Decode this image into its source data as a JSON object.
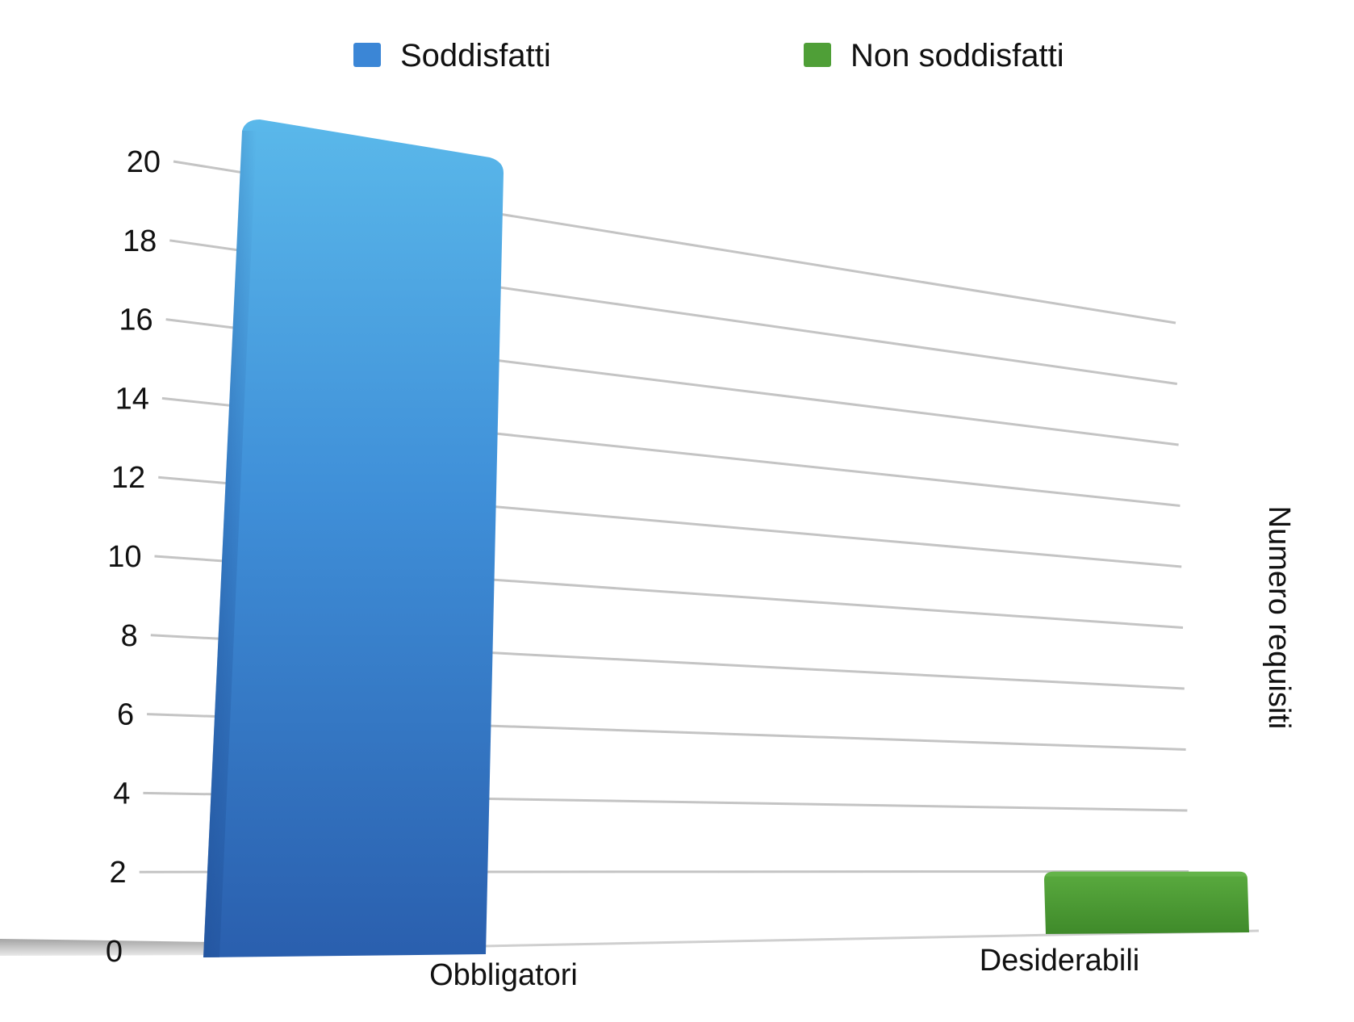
{
  "chart_data": {
    "type": "bar",
    "title": "",
    "xlabel": "",
    "ylabel": "Numero requisiti",
    "ylim": [
      0,
      20
    ],
    "y_ticks": [
      0,
      2,
      4,
      6,
      8,
      10,
      12,
      14,
      16,
      18,
      20
    ],
    "grid": true,
    "legend_position": "top",
    "categories": [
      "Obbligatori",
      "Desiderabili"
    ],
    "series": [
      {
        "name": "Soddisfatti",
        "color": "#3b86d6",
        "values": [
          21,
          0
        ]
      },
      {
        "name": "Non soddisfatti",
        "color": "#4f9f37",
        "values": [
          0,
          3
        ]
      }
    ]
  }
}
